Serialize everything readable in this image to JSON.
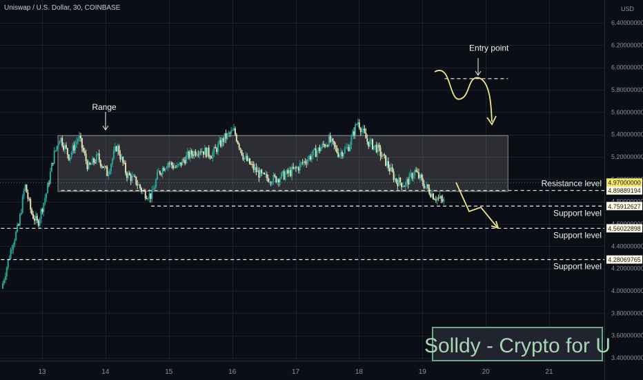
{
  "header": {
    "symbol_title": "Uniswap / U.S. Dollar, 30, COINBASE",
    "currency": "USD"
  },
  "chart_data": {
    "type": "candlestick",
    "title": "Uniswap / U.S. Dollar, 30, COINBASE",
    "ylabel": "USD",
    "ylim": [
      3.32,
      6.56
    ],
    "xlim": [
      12.35,
      21.6
    ],
    "grid": true,
    "y_ticks": [
      "6.40000000",
      "6.20000000",
      "6.00000000",
      "5.80000000",
      "5.60000000",
      "5.40000000",
      "5.20000000",
      "5.00000000",
      "4.80000000",
      "4.60000000",
      "4.40000000",
      "4.20000000",
      "4.00000000",
      "3.80000000",
      "3.60000000",
      "3.40000000"
    ],
    "y_tick_values": [
      6.4,
      6.2,
      6.0,
      5.8,
      5.6,
      5.4,
      5.2,
      5.0,
      4.8,
      4.6,
      4.4,
      4.2,
      4.0,
      3.8,
      3.6,
      3.4
    ],
    "x_ticks": [
      "13",
      "14",
      "15",
      "16",
      "17",
      "18",
      "19",
      "20",
      "21"
    ],
    "x_tick_values": [
      13,
      14,
      15,
      16,
      17,
      18,
      19,
      20,
      21
    ],
    "colors": {
      "up": "#26a69a",
      "down": "#e6e2b8",
      "background": "#0c0e15",
      "grid": "#1c2030",
      "annotation": "#f0e68c"
    },
    "price_path": [
      [
        12.38,
        4.02
      ],
      [
        12.55,
        4.42
      ],
      [
        12.65,
        4.58
      ],
      [
        12.75,
        4.95
      ],
      [
        12.85,
        4.7
      ],
      [
        12.95,
        4.6
      ],
      [
        13.1,
        4.9
      ],
      [
        13.2,
        5.2
      ],
      [
        13.3,
        5.38
      ],
      [
        13.45,
        5.2
      ],
      [
        13.6,
        5.38
      ],
      [
        13.75,
        5.1
      ],
      [
        13.9,
        5.2
      ],
      [
        14.05,
        5.05
      ],
      [
        14.2,
        5.3
      ],
      [
        14.35,
        5.05
      ],
      [
        14.5,
        4.98
      ],
      [
        14.62,
        4.88
      ],
      [
        14.75,
        4.85
      ],
      [
        14.85,
        5.05
      ],
      [
        15.0,
        5.15
      ],
      [
        15.15,
        5.1
      ],
      [
        15.3,
        5.2
      ],
      [
        15.5,
        5.27
      ],
      [
        15.7,
        5.22
      ],
      [
        15.9,
        5.37
      ],
      [
        16.05,
        5.43
      ],
      [
        16.2,
        5.2
      ],
      [
        16.35,
        5.1
      ],
      [
        16.5,
        5.02
      ],
      [
        16.7,
        5.0
      ],
      [
        16.9,
        5.05
      ],
      [
        17.05,
        5.1
      ],
      [
        17.2,
        5.18
      ],
      [
        17.4,
        5.27
      ],
      [
        17.55,
        5.35
      ],
      [
        17.7,
        5.23
      ],
      [
        17.85,
        5.28
      ],
      [
        18.0,
        5.52
      ],
      [
        18.15,
        5.34
      ],
      [
        18.3,
        5.28
      ],
      [
        18.45,
        5.15
      ],
      [
        18.6,
        4.99
      ],
      [
        18.75,
        4.95
      ],
      [
        18.9,
        5.07
      ],
      [
        19.05,
        4.95
      ],
      [
        19.2,
        4.85
      ],
      [
        19.35,
        4.8
      ]
    ],
    "zones": [
      {
        "label": "Range",
        "y_bottom": 4.89,
        "y_top": 5.39,
        "x_start": 13.25,
        "x_end": 20.35
      }
    ],
    "levels": [
      {
        "label": "Resistance level",
        "value": "4.89889194",
        "y": 4.8989
      },
      {
        "label": "Support level",
        "value": "4.75912627",
        "y": 4.7591
      },
      {
        "label": "Support level",
        "value": "4.56022898",
        "y": 4.5602
      },
      {
        "label": "Support level",
        "value": "4.28069765",
        "y": 4.2807
      }
    ],
    "current_price": {
      "value": "4.97000000",
      "y": 4.97
    },
    "entry_line": {
      "y": 5.9,
      "x_start": 19.35,
      "x_end": 20.35
    },
    "annotations": [
      {
        "text": "Range",
        "x": 13.98,
        "y": 5.62
      },
      {
        "text": "Entry point",
        "x": 20.05,
        "y": 6.15
      }
    ]
  },
  "watermark": {
    "text": "Solldy - Crypto for U",
    "color": "#a8d5b5",
    "border": "#6aa88a"
  }
}
